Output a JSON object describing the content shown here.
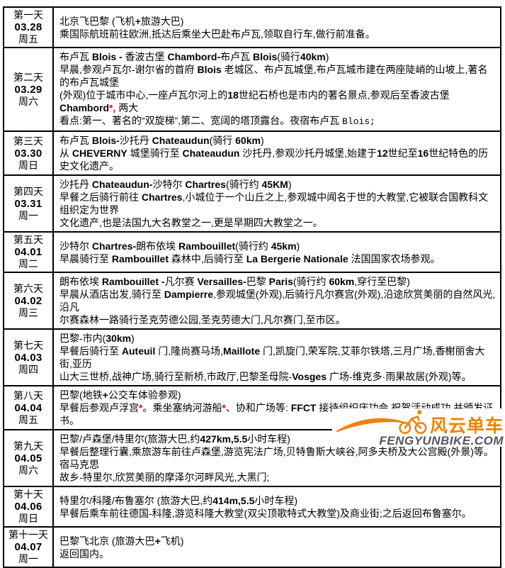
{
  "colors": {
    "accent_red": "#FF0000",
    "logo_orange": "#F18101",
    "logo_gray": "#54545C",
    "border": "#000000"
  },
  "table": {
    "rows": [
      {
        "day": "第一天",
        "date": "03.28",
        "week": "周五",
        "lines": [
          [
            {
              "t": "北京飞巴黎 (飞机"
            },
            {
              "t": "+",
              "s": "b"
            },
            {
              "t": "旅游大巴)"
            }
          ],
          [
            {
              "t": "乘国际航班前往欧洲,抵达后乘坐大巴赴布卢瓦,领取自行车,做行前准备。"
            }
          ]
        ]
      },
      {
        "day": "第二天",
        "date": "03.29",
        "week": "周六",
        "lines": [
          [
            {
              "t": "布卢瓦 "
            },
            {
              "t": "Blois - ",
              "s": "b"
            },
            {
              "t": "香波古堡 "
            },
            {
              "t": "Chambord-",
              "s": "b"
            },
            {
              "t": "布卢瓦 "
            },
            {
              "t": "Blois",
              "s": "b"
            },
            {
              "t": "(骑行"
            },
            {
              "t": "40km",
              "s": "b"
            },
            {
              "t": ")"
            }
          ],
          [
            {
              "t": "早晨,参观卢瓦尔-谢尔省的首府 "
            },
            {
              "t": "Blois",
              "s": "b"
            },
            {
              "t": " 老城区、布卢瓦城堡,布卢瓦城市建在两座陡峭的山坡上,著名的布卢瓦城堡"
            }
          ],
          [
            {
              "t": "(外观)位于城市中心,一座卢瓦尔河上的"
            },
            {
              "t": "18",
              "s": "b"
            },
            {
              "t": "世纪石桥也是市内的著名景点,参观后至香波古堡 "
            },
            {
              "t": "Chambord",
              "s": "b"
            },
            {
              "t": "*,",
              "s": "r"
            },
            {
              "t": " 两大"
            }
          ],
          [
            {
              "t": "看点:第一、著名的“双旋梯”,第二、宽阔的塔顶露台。夜宿布卢瓦 "
            },
            {
              "t": "Blois;",
              "s": "m"
            }
          ]
        ]
      },
      {
        "day": "第三天",
        "date": "03.30",
        "week": "周日",
        "lines": [
          [
            {
              "t": "布卢瓦 "
            },
            {
              "t": "Blois-",
              "s": "b"
            },
            {
              "t": "沙托丹 "
            },
            {
              "t": "Chateaudun",
              "s": "b"
            },
            {
              "t": "(骑行 "
            },
            {
              "t": "60km",
              "s": "b"
            },
            {
              "t": ")"
            }
          ],
          [
            {
              "t": "从 "
            },
            {
              "t": "CHEVERNY",
              "s": "b"
            },
            {
              "t": " 城堡骑行至 "
            },
            {
              "t": "Chateaudun",
              "s": "b"
            },
            {
              "t": " 沙托丹,参观沙托丹城堡,始建于"
            },
            {
              "t": "12",
              "s": "b"
            },
            {
              "t": "世纪至"
            },
            {
              "t": "16",
              "s": "b"
            },
            {
              "t": "世纪特色的历史文化遗产。"
            }
          ]
        ]
      },
      {
        "day": "第四天",
        "date": "03.31",
        "week": "周一",
        "lines": [
          [
            {
              "t": "沙托丹 "
            },
            {
              "t": "Chateaudun-",
              "s": "b"
            },
            {
              "t": "沙特尔 "
            },
            {
              "t": "Chartres",
              "s": "b"
            },
            {
              "t": "(骑行约 "
            },
            {
              "t": "45KM",
              "s": "b"
            },
            {
              "t": ")"
            }
          ],
          [
            {
              "t": "早餐之后骑行前往 "
            },
            {
              "t": "Chartres",
              "s": "b"
            },
            {
              "t": ",小城位于一个山丘之上,参观城中闻名于世的大教堂,它被联合国教科文组织定为世界"
            }
          ],
          [
            {
              "t": "文化遗产,也是法国九大名教堂之一,更是早期四大教堂之一。"
            }
          ]
        ]
      },
      {
        "day": "第五天",
        "date": "04.01",
        "week": "周二",
        "lines": [
          [
            {
              "t": "沙特尔 "
            },
            {
              "t": "Chartres-",
              "s": "b"
            },
            {
              "t": "朗布依埃 "
            },
            {
              "t": "Rambouillet",
              "s": "b"
            },
            {
              "t": "(骑行约 "
            },
            {
              "t": "45km",
              "s": "b"
            },
            {
              "t": ")"
            }
          ],
          [
            {
              "t": "早晨骑行至 "
            },
            {
              "t": "Rambouillet",
              "s": "b"
            },
            {
              "t": " 森林中,后骑行至 "
            },
            {
              "t": "La Bergerie Nationale",
              "s": "b"
            },
            {
              "t": " 法国国家农场参观。"
            }
          ]
        ]
      },
      {
        "day": "第六天",
        "date": "04.02",
        "week": "周三",
        "lines": [
          [
            {
              "t": "朗布依埃 "
            },
            {
              "t": "Rambouillet -",
              "s": "b"
            },
            {
              "t": "凡尔赛 "
            },
            {
              "t": "Versailles-",
              "s": "b"
            },
            {
              "t": "巴黎 "
            },
            {
              "t": "Paris",
              "s": "b"
            },
            {
              "t": "(骑行约 "
            },
            {
              "t": "60km",
              "s": "b"
            },
            {
              "t": ",穿行至巴黎)"
            }
          ],
          [
            {
              "t": "早晨从酒店出发,骑行至 "
            },
            {
              "t": "Dampierre",
              "s": "b"
            },
            {
              "t": ",参观城堡(外观),后骑行凡尔赛宫(外观),沿途欣赏美丽的自然风光,沿凡"
            }
          ],
          [
            {
              "t": "尔赛森林一路骑行圣克劳德公园,圣克劳德大门,凡尔赛门,至市区。"
            }
          ]
        ]
      },
      {
        "day": "第七天",
        "date": "04.03",
        "week": "周四",
        "lines": [
          [
            {
              "t": "巴黎-市内("
            },
            {
              "t": "30km",
              "s": "b"
            },
            {
              "t": ")"
            }
          ],
          [
            {
              "t": "早餐后骑行至 "
            },
            {
              "t": "Auteuil",
              "s": "b"
            },
            {
              "t": " 门,隆尚赛马场,"
            },
            {
              "t": "Maillote",
              "s": "b"
            },
            {
              "t": " 门,凯旋门,荣军院,艾菲尔铁塔,三月广场,香榭丽舍大街,亚历"
            }
          ],
          [
            {
              "t": "山大三世桥,战神广场,骑行至新桥,市政厅,巴黎圣母院-"
            },
            {
              "t": "Vosges",
              "s": "b"
            },
            {
              "t": " 广场-维克多·雨果故居(外观)等。"
            }
          ]
        ]
      },
      {
        "day": "第八天",
        "date": "04.04",
        "week": "周五",
        "lines": [
          [
            {
              "t": "巴黎(地铁"
            },
            {
              "t": "+",
              "s": "b"
            },
            {
              "t": "公交车体验参观)"
            }
          ],
          [
            {
              "t": "早餐后参观卢浮宫"
            },
            {
              "t": "*",
              "s": "r"
            },
            {
              "t": "。乘坐塞纳河游船"
            },
            {
              "t": "*",
              "s": "r"
            },
            {
              "t": "、协和广场等: "
            },
            {
              "t": "FFCT",
              "s": "b"
            },
            {
              "t": " 接待组织庆功会,祝贺活动成功,并颁发证书。"
            }
          ]
        ]
      },
      {
        "day": "第九天",
        "date": "04.05",
        "week": "周六",
        "lines": [
          [
            {
              "t": "巴黎/卢森堡/特里尔(旅游大巴,约"
            },
            {
              "t": "427km,5.5",
              "s": "b"
            },
            {
              "t": "小时车程)"
            }
          ],
          [
            {
              "t": "早餐后整理行囊,乘旅游车前往卢森堡,游览宪法广场,贝特鲁斯大峡谷,阿多夫桥及大公宫殿(外景)等。宿马克思"
            }
          ],
          [
            {
              "t": "故乡-特里尔,欣赏美丽的摩泽尔河畔风光,大黑门;"
            }
          ]
        ]
      },
      {
        "day": "第十天",
        "date": "04.06",
        "week": "周日",
        "lines": [
          [
            {
              "t": "特里尔/科隆/布鲁塞尔 (旅游大巴,约"
            },
            {
              "t": "414m,5.5",
              "s": "b"
            },
            {
              "t": "小时车程)"
            }
          ],
          [
            {
              "t": "早餐后乘车前往德国-科隆,游览科隆大教堂(双尖顶歌特式大教堂)及商业街;之后返回布鲁塞尔。"
            }
          ]
        ]
      },
      {
        "day": "第十一天",
        "date": "04.07",
        "week": "周一",
        "lines": [
          [
            {
              "t": "巴黎飞北京 (旅游大巴"
            },
            {
              "t": "+",
              "s": "b"
            },
            {
              "t": "飞机)"
            }
          ],
          [
            {
              "t": "返回国内。"
            }
          ]
        ]
      }
    ]
  },
  "logo": {
    "brand_cn": "风云单车",
    "brand_url": "FENGYUNBIKE.COM"
  }
}
